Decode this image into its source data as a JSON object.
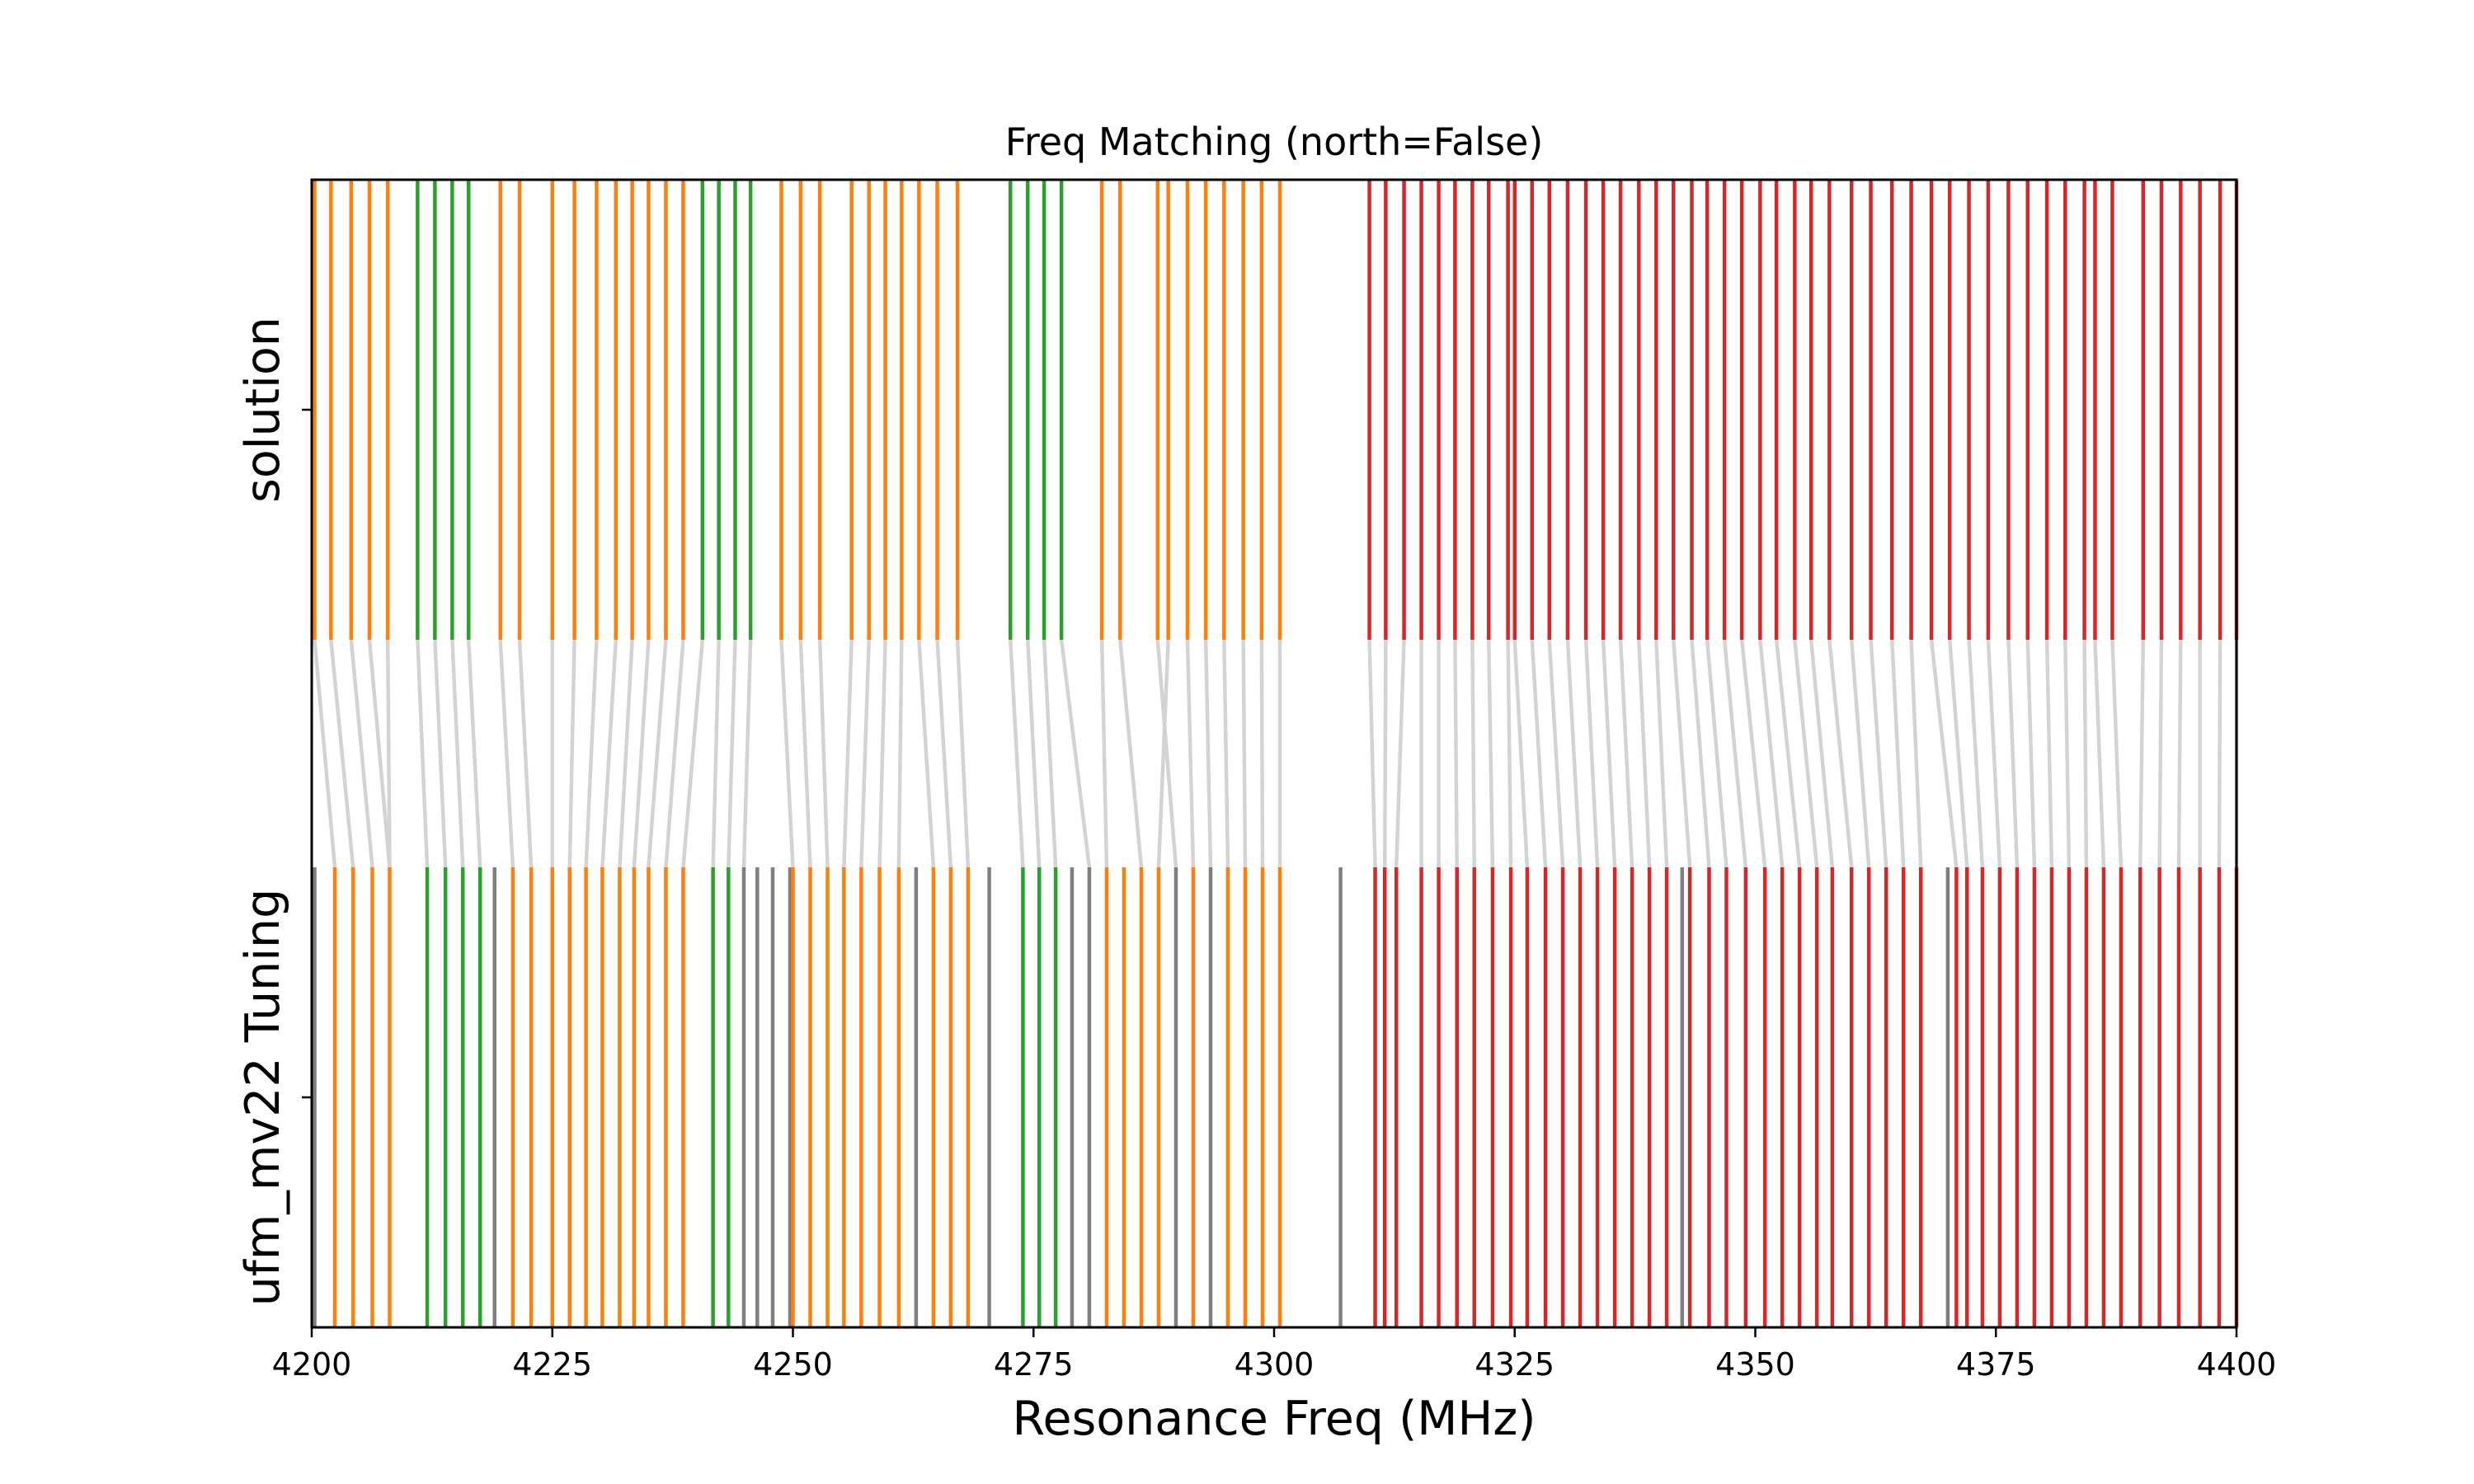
{
  "chart_data": {
    "type": "eventplot",
    "title": "Freq Matching (north=False)",
    "xlabel": "Resonance Freq (MHz)",
    "ylabel_top": "solution",
    "ylabel_bottom": "ufm_mv22 Tuning",
    "xlim": [
      4200,
      4400
    ],
    "xticks": [
      4200,
      4225,
      4250,
      4275,
      4300,
      4325,
      4350,
      4375,
      4400
    ],
    "colors": {
      "orange": "#ff7f0e",
      "green": "#2ca02c",
      "red": "#d62728",
      "gray": "#7f7f7f",
      "link": "#d3d3d3"
    },
    "solution": [
      {
        "f": 4200.3,
        "c": "orange"
      },
      {
        "f": 4202.0,
        "c": "orange"
      },
      {
        "f": 4204.1,
        "c": "orange"
      },
      {
        "f": 4206.0,
        "c": "orange"
      },
      {
        "f": 4207.9,
        "c": "orange"
      },
      {
        "f": 4211.0,
        "c": "green"
      },
      {
        "f": 4212.8,
        "c": "green"
      },
      {
        "f": 4214.6,
        "c": "green"
      },
      {
        "f": 4216.3,
        "c": "green"
      },
      {
        "f": 4219.6,
        "c": "orange"
      },
      {
        "f": 4221.6,
        "c": "orange"
      },
      {
        "f": 4225.0,
        "c": "orange"
      },
      {
        "f": 4227.3,
        "c": "orange"
      },
      {
        "f": 4229.6,
        "c": "orange"
      },
      {
        "f": 4231.6,
        "c": "orange"
      },
      {
        "f": 4233.3,
        "c": "orange"
      },
      {
        "f": 4235.0,
        "c": "orange"
      },
      {
        "f": 4236.8,
        "c": "orange"
      },
      {
        "f": 4238.6,
        "c": "orange"
      },
      {
        "f": 4240.6,
        "c": "green"
      },
      {
        "f": 4242.3,
        "c": "green"
      },
      {
        "f": 4244.0,
        "c": "green"
      },
      {
        "f": 4245.6,
        "c": "green"
      },
      {
        "f": 4248.8,
        "c": "orange"
      },
      {
        "f": 4250.8,
        "c": "orange"
      },
      {
        "f": 4252.8,
        "c": "orange"
      },
      {
        "f": 4256.1,
        "c": "orange"
      },
      {
        "f": 4257.9,
        "c": "orange"
      },
      {
        "f": 4259.6,
        "c": "orange"
      },
      {
        "f": 4261.3,
        "c": "orange"
      },
      {
        "f": 4263.1,
        "c": "orange"
      },
      {
        "f": 4265.0,
        "c": "orange"
      },
      {
        "f": 4267.1,
        "c": "orange"
      },
      {
        "f": 4272.6,
        "c": "green"
      },
      {
        "f": 4274.4,
        "c": "green"
      },
      {
        "f": 4276.1,
        "c": "green"
      },
      {
        "f": 4277.9,
        "c": "green"
      },
      {
        "f": 4282.1,
        "c": "orange"
      },
      {
        "f": 4284.0,
        "c": "orange"
      },
      {
        "f": 4287.9,
        "c": "orange"
      },
      {
        "f": 4289.0,
        "c": "orange"
      },
      {
        "f": 4291.0,
        "c": "orange"
      },
      {
        "f": 4292.9,
        "c": "orange"
      },
      {
        "f": 4294.8,
        "c": "orange"
      },
      {
        "f": 4296.8,
        "c": "orange"
      },
      {
        "f": 4298.7,
        "c": "orange"
      },
      {
        "f": 4300.6,
        "c": "orange"
      },
      {
        "f": 4309.9,
        "c": "red"
      },
      {
        "f": 4311.6,
        "c": "red"
      },
      {
        "f": 4313.5,
        "c": "red"
      },
      {
        "f": 4315.3,
        "c": "red"
      },
      {
        "f": 4317.1,
        "c": "red"
      },
      {
        "f": 4318.8,
        "c": "red"
      },
      {
        "f": 4320.6,
        "c": "red"
      },
      {
        "f": 4322.3,
        "c": "red"
      },
      {
        "f": 4324.3,
        "c": "red"
      },
      {
        "f": 4325.0,
        "c": "red"
      },
      {
        "f": 4326.8,
        "c": "red"
      },
      {
        "f": 4328.6,
        "c": "red"
      },
      {
        "f": 4330.5,
        "c": "red"
      },
      {
        "f": 4332.4,
        "c": "red"
      },
      {
        "f": 4334.2,
        "c": "red"
      },
      {
        "f": 4336.0,
        "c": "red"
      },
      {
        "f": 4337.9,
        "c": "red"
      },
      {
        "f": 4339.7,
        "c": "red"
      },
      {
        "f": 4341.5,
        "c": "red"
      },
      {
        "f": 4343.4,
        "c": "red"
      },
      {
        "f": 4345.0,
        "c": "red"
      },
      {
        "f": 4346.8,
        "c": "red"
      },
      {
        "f": 4348.6,
        "c": "red"
      },
      {
        "f": 4350.5,
        "c": "red"
      },
      {
        "f": 4352.2,
        "c": "red"
      },
      {
        "f": 4354.1,
        "c": "red"
      },
      {
        "f": 4355.8,
        "c": "red"
      },
      {
        "f": 4357.7,
        "c": "red"
      },
      {
        "f": 4360.0,
        "c": "red"
      },
      {
        "f": 4362.0,
        "c": "red"
      },
      {
        "f": 4364.2,
        "c": "red"
      },
      {
        "f": 4366.2,
        "c": "red"
      },
      {
        "f": 4368.3,
        "c": "red"
      },
      {
        "f": 4370.2,
        "c": "red"
      },
      {
        "f": 4372.2,
        "c": "red"
      },
      {
        "f": 4374.2,
        "c": "red"
      },
      {
        "f": 4376.3,
        "c": "red"
      },
      {
        "f": 4378.3,
        "c": "red"
      },
      {
        "f": 4380.3,
        "c": "red"
      },
      {
        "f": 4382.2,
        "c": "red"
      },
      {
        "f": 4384.2,
        "c": "red"
      },
      {
        "f": 4385.3,
        "c": "red"
      },
      {
        "f": 4387.1,
        "c": "red"
      },
      {
        "f": 4390.3,
        "c": "red"
      },
      {
        "f": 4392.2,
        "c": "red"
      },
      {
        "f": 4394.2,
        "c": "red"
      },
      {
        "f": 4396.2,
        "c": "red"
      },
      {
        "f": 4398.3,
        "c": "red"
      },
      {
        "f": 4400.0,
        "c": "red"
      }
    ],
    "tuning": [
      {
        "f": 4200.3,
        "c": "gray"
      },
      {
        "f": 4202.4,
        "c": "orange"
      },
      {
        "f": 4204.3,
        "c": "orange"
      },
      {
        "f": 4206.3,
        "c": "orange"
      },
      {
        "f": 4208.1,
        "c": "orange"
      },
      {
        "f": 4212.0,
        "c": "green"
      },
      {
        "f": 4213.9,
        "c": "green"
      },
      {
        "f": 4215.7,
        "c": "green"
      },
      {
        "f": 4217.5,
        "c": "green"
      },
      {
        "f": 4219.0,
        "c": "gray"
      },
      {
        "f": 4220.9,
        "c": "orange"
      },
      {
        "f": 4222.8,
        "c": "orange"
      },
      {
        "f": 4225.0,
        "c": "orange"
      },
      {
        "f": 4226.8,
        "c": "orange"
      },
      {
        "f": 4228.5,
        "c": "orange"
      },
      {
        "f": 4230.2,
        "c": "orange"
      },
      {
        "f": 4232.0,
        "c": "orange"
      },
      {
        "f": 4233.5,
        "c": "orange"
      },
      {
        "f": 4235.0,
        "c": "orange"
      },
      {
        "f": 4236.8,
        "c": "orange"
      },
      {
        "f": 4238.6,
        "c": "orange"
      },
      {
        "f": 4241.7,
        "c": "green"
      },
      {
        "f": 4243.3,
        "c": "green"
      },
      {
        "f": 4244.9,
        "c": "gray"
      },
      {
        "f": 4246.3,
        "c": "gray"
      },
      {
        "f": 4247.9,
        "c": "gray"
      },
      {
        "f": 4249.7,
        "c": "gray"
      },
      {
        "f": 4250.0,
        "c": "orange"
      },
      {
        "f": 4251.8,
        "c": "orange"
      },
      {
        "f": 4253.6,
        "c": "orange"
      },
      {
        "f": 4255.3,
        "c": "orange"
      },
      {
        "f": 4257.1,
        "c": "orange"
      },
      {
        "f": 4259.0,
        "c": "orange"
      },
      {
        "f": 4261.0,
        "c": "orange"
      },
      {
        "f": 4262.8,
        "c": "gray"
      },
      {
        "f": 4264.6,
        "c": "orange"
      },
      {
        "f": 4266.4,
        "c": "orange"
      },
      {
        "f": 4268.2,
        "c": "orange"
      },
      {
        "f": 4270.4,
        "c": "gray"
      },
      {
        "f": 4273.9,
        "c": "green"
      },
      {
        "f": 4275.6,
        "c": "green"
      },
      {
        "f": 4277.3,
        "c": "green"
      },
      {
        "f": 4279.0,
        "c": "gray"
      },
      {
        "f": 4280.8,
        "c": "gray"
      },
      {
        "f": 4282.6,
        "c": "orange"
      },
      {
        "f": 4284.4,
        "c": "orange"
      },
      {
        "f": 4286.2,
        "c": "orange"
      },
      {
        "f": 4288.0,
        "c": "orange"
      },
      {
        "f": 4289.8,
        "c": "gray"
      },
      {
        "f": 4291.6,
        "c": "orange"
      },
      {
        "f": 4293.4,
        "c": "gray"
      },
      {
        "f": 4295.2,
        "c": "orange"
      },
      {
        "f": 4297.0,
        "c": "orange"
      },
      {
        "f": 4298.8,
        "c": "orange"
      },
      {
        "f": 4300.6,
        "c": "orange"
      },
      {
        "f": 4306.9,
        "c": "gray"
      },
      {
        "f": 4310.5,
        "c": "red"
      },
      {
        "f": 4311.5,
        "c": "red"
      },
      {
        "f": 4312.7,
        "c": "red"
      },
      {
        "f": 4315.3,
        "c": "red"
      },
      {
        "f": 4317.1,
        "c": "red"
      },
      {
        "f": 4319.0,
        "c": "red"
      },
      {
        "f": 4320.8,
        "c": "red"
      },
      {
        "f": 4322.7,
        "c": "red"
      },
      {
        "f": 4324.6,
        "c": "red"
      },
      {
        "f": 4326.3,
        "c": "red"
      },
      {
        "f": 4328.2,
        "c": "red"
      },
      {
        "f": 4330.0,
        "c": "red"
      },
      {
        "f": 4331.8,
        "c": "red"
      },
      {
        "f": 4333.6,
        "c": "red"
      },
      {
        "f": 4335.4,
        "c": "red"
      },
      {
        "f": 4337.2,
        "c": "red"
      },
      {
        "f": 4339.0,
        "c": "red"
      },
      {
        "f": 4340.8,
        "c": "red"
      },
      {
        "f": 4342.4,
        "c": "gray"
      },
      {
        "f": 4343.2,
        "c": "red"
      },
      {
        "f": 4345.2,
        "c": "red"
      },
      {
        "f": 4347.0,
        "c": "red"
      },
      {
        "f": 4349.0,
        "c": "red"
      },
      {
        "f": 4351.0,
        "c": "red"
      },
      {
        "f": 4352.8,
        "c": "red"
      },
      {
        "f": 4354.6,
        "c": "red"
      },
      {
        "f": 4356.4,
        "c": "red"
      },
      {
        "f": 4358.0,
        "c": "red"
      },
      {
        "f": 4360.0,
        "c": "red"
      },
      {
        "f": 4361.8,
        "c": "red"
      },
      {
        "f": 4363.6,
        "c": "red"
      },
      {
        "f": 4365.4,
        "c": "red"
      },
      {
        "f": 4367.2,
        "c": "red"
      },
      {
        "f": 4370.0,
        "c": "gray"
      },
      {
        "f": 4370.9,
        "c": "red"
      },
      {
        "f": 4372.0,
        "c": "red"
      },
      {
        "f": 4373.6,
        "c": "red"
      },
      {
        "f": 4375.4,
        "c": "red"
      },
      {
        "f": 4377.2,
        "c": "red"
      },
      {
        "f": 4379.0,
        "c": "red"
      },
      {
        "f": 4380.8,
        "c": "red"
      },
      {
        "f": 4382.6,
        "c": "red"
      },
      {
        "f": 4384.4,
        "c": "red"
      },
      {
        "f": 4386.2,
        "c": "red"
      },
      {
        "f": 4388.0,
        "c": "red"
      },
      {
        "f": 4390.0,
        "c": "red"
      },
      {
        "f": 4392.0,
        "c": "red"
      },
      {
        "f": 4394.0,
        "c": "red"
      },
      {
        "f": 4396.2,
        "c": "red"
      },
      {
        "f": 4398.2,
        "c": "red"
      },
      {
        "f": 4400.0,
        "c": "red"
      }
    ],
    "matches": [
      [
        4200.3,
        4202.4
      ],
      [
        4202.0,
        4204.3
      ],
      [
        4204.1,
        4206.3
      ],
      [
        4206.0,
        4208.1
      ],
      [
        4207.9,
        4208.1
      ],
      [
        4211.0,
        4212.0
      ],
      [
        4212.8,
        4213.9
      ],
      [
        4214.6,
        4215.7
      ],
      [
        4216.3,
        4217.5
      ],
      [
        4219.6,
        4220.9
      ],
      [
        4221.6,
        4222.8
      ],
      [
        4225.0,
        4225.0
      ],
      [
        4227.3,
        4226.8
      ],
      [
        4229.6,
        4228.5
      ],
      [
        4231.6,
        4230.2
      ],
      [
        4233.3,
        4232.0
      ],
      [
        4235.0,
        4233.5
      ],
      [
        4236.8,
        4235.0
      ],
      [
        4238.6,
        4236.8
      ],
      [
        4240.6,
        4238.6
      ],
      [
        4242.3,
        4241.7
      ],
      [
        4244.0,
        4243.3
      ],
      [
        4245.6,
        4244.9
      ],
      [
        4248.8,
        4250.0
      ],
      [
        4250.8,
        4251.8
      ],
      [
        4252.8,
        4253.6
      ],
      [
        4256.1,
        4255.3
      ],
      [
        4257.9,
        4257.1
      ],
      [
        4259.6,
        4259.0
      ],
      [
        4261.3,
        4261.0
      ],
      [
        4263.1,
        4264.6
      ],
      [
        4265.0,
        4266.4
      ],
      [
        4267.1,
        4268.2
      ],
      [
        4272.6,
        4273.9
      ],
      [
        4274.4,
        4275.6
      ],
      [
        4276.1,
        4277.3
      ],
      [
        4277.9,
        4280.8
      ],
      [
        4282.1,
        4282.6
      ],
      [
        4284.0,
        4286.2
      ],
      [
        4287.9,
        4289.8
      ],
      [
        4289.0,
        4288.0
      ],
      [
        4291.0,
        4291.6
      ],
      [
        4292.9,
        4293.4
      ],
      [
        4294.8,
        4295.2
      ],
      [
        4296.8,
        4297.0
      ],
      [
        4298.7,
        4298.8
      ],
      [
        4300.6,
        4300.6
      ],
      [
        4309.9,
        4310.5
      ],
      [
        4311.6,
        4311.5
      ],
      [
        4313.5,
        4312.7
      ],
      [
        4315.3,
        4315.3
      ],
      [
        4317.1,
        4317.1
      ],
      [
        4318.8,
        4319.0
      ],
      [
        4320.6,
        4320.8
      ],
      [
        4322.3,
        4322.7
      ],
      [
        4324.3,
        4324.6
      ],
      [
        4325.0,
        4326.3
      ],
      [
        4326.8,
        4328.2
      ],
      [
        4328.6,
        4330.0
      ],
      [
        4330.5,
        4331.8
      ],
      [
        4332.4,
        4333.6
      ],
      [
        4334.2,
        4335.4
      ],
      [
        4336.0,
        4337.2
      ],
      [
        4337.9,
        4339.0
      ],
      [
        4339.7,
        4340.8
      ],
      [
        4341.5,
        4343.2
      ],
      [
        4343.4,
        4345.2
      ],
      [
        4345.0,
        4347.0
      ],
      [
        4346.8,
        4349.0
      ],
      [
        4348.6,
        4351.0
      ],
      [
        4350.5,
        4352.8
      ],
      [
        4352.2,
        4354.6
      ],
      [
        4354.1,
        4356.4
      ],
      [
        4355.8,
        4358.0
      ],
      [
        4357.7,
        4360.0
      ],
      [
        4360.0,
        4361.8
      ],
      [
        4362.0,
        4363.6
      ],
      [
        4364.2,
        4365.4
      ],
      [
        4366.2,
        4367.2
      ],
      [
        4368.3,
        4370.9
      ],
      [
        4370.2,
        4372.0
      ],
      [
        4372.2,
        4373.6
      ],
      [
        4374.2,
        4375.4
      ],
      [
        4376.3,
        4377.2
      ],
      [
        4378.3,
        4379.0
      ],
      [
        4380.3,
        4380.8
      ],
      [
        4382.2,
        4382.6
      ],
      [
        4384.2,
        4384.4
      ],
      [
        4385.3,
        4386.2
      ],
      [
        4387.1,
        4388.0
      ],
      [
        4390.3,
        4390.0
      ],
      [
        4392.2,
        4392.0
      ],
      [
        4394.2,
        4394.0
      ],
      [
        4396.2,
        4396.2
      ],
      [
        4398.3,
        4398.2
      ],
      [
        4400.0,
        4400.0
      ]
    ]
  }
}
